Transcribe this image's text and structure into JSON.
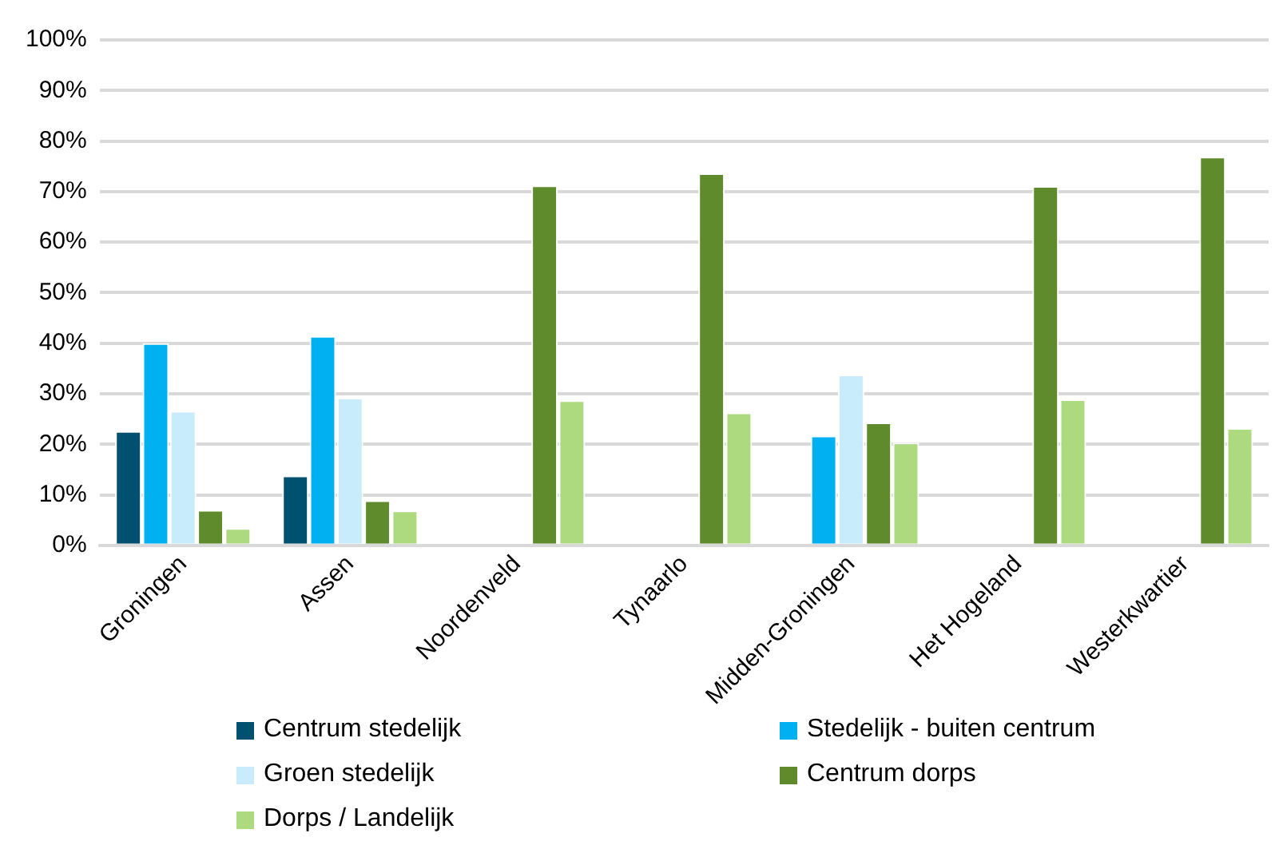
{
  "chart_data": {
    "type": "bar",
    "categories": [
      "Groningen",
      "Assen",
      "Noordenveld",
      "Tynaarlo",
      "Midden-Groningen",
      "Het Hogeland",
      "Westerkwartier"
    ],
    "series": [
      {
        "name": "Centrum stedelijk",
        "color": "#00506f",
        "values": [
          22.6,
          13.8,
          null,
          null,
          null,
          null,
          null
        ]
      },
      {
        "name": "Stedelijk - buiten centrum",
        "color": "#00b0f0",
        "values": [
          40,
          41.4,
          null,
          null,
          21.7,
          null,
          null
        ]
      },
      {
        "name": "Groen stedelijk",
        "color": "#c9ecfc",
        "values": [
          26.6,
          29.2,
          null,
          null,
          33.8,
          null,
          null
        ]
      },
      {
        "name": "Centrum dorps",
        "color": "#5f8b2d",
        "values": [
          7,
          8.9,
          71.2,
          73.6,
          24.3,
          71.1,
          76.9
        ]
      },
      {
        "name": "Dorps / Landelijk",
        "color": "#add97f",
        "values": [
          3.4,
          6.9,
          28.7,
          26.3,
          20.3,
          28.9,
          23.2
        ]
      }
    ],
    "ylim": [
      0,
      100
    ],
    "yticks": [
      {
        "value": 0,
        "label": "0%"
      },
      {
        "value": 10,
        "label": "10%"
      },
      {
        "value": 20,
        "label": "20%"
      },
      {
        "value": 30,
        "label": "30%"
      },
      {
        "value": 40,
        "label": "40%"
      },
      {
        "value": 50,
        "label": "50%"
      },
      {
        "value": 60,
        "label": "60%"
      },
      {
        "value": 70,
        "label": "70%"
      },
      {
        "value": 80,
        "label": "80%"
      },
      {
        "value": 90,
        "label": "90%"
      },
      {
        "value": 100,
        "label": "100%"
      }
    ],
    "grid": "y",
    "legend": "bottom"
  }
}
